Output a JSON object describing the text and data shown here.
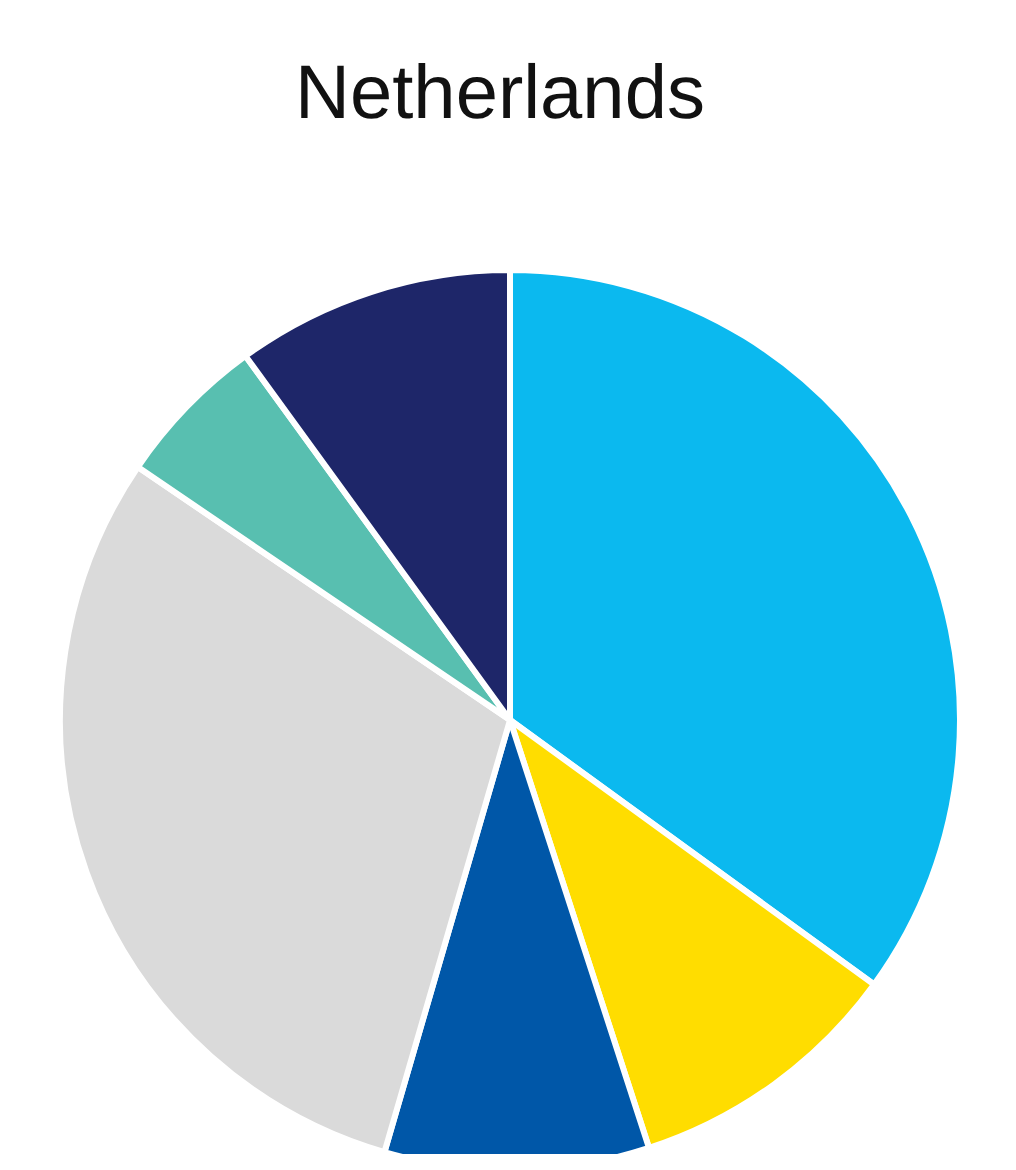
{
  "chart_data": {
    "type": "pie",
    "title": "Netherlands",
    "categories": [
      null,
      null,
      null,
      null,
      null,
      null
    ],
    "values": [
      35,
      10,
      9.5,
      30,
      5.5,
      10
    ],
    "colors": [
      "#0bb9ef",
      "#ffdd00",
      "#0057a8",
      "#dadada",
      "#58bfb0",
      "#1e2669"
    ]
  }
}
